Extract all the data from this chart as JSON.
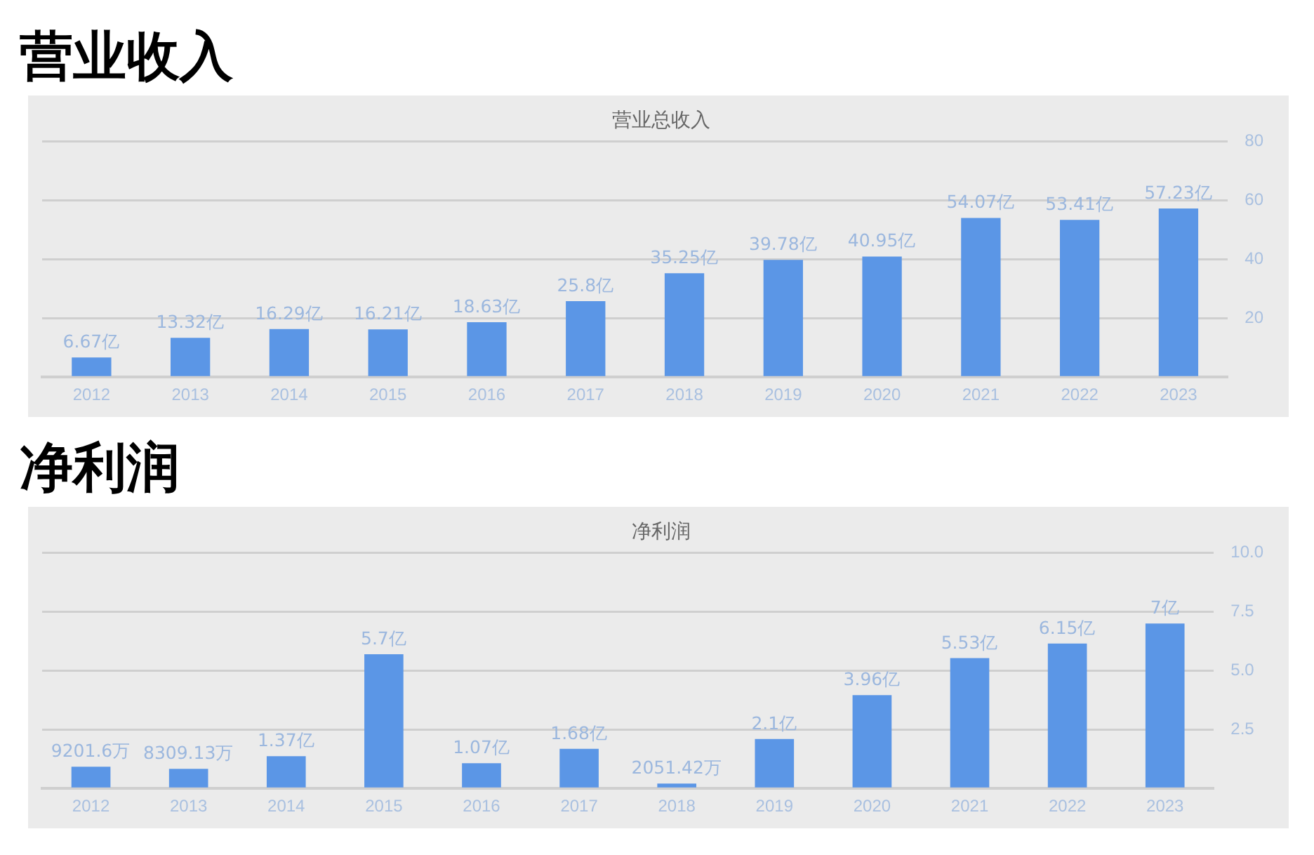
{
  "chart_data": [
    {
      "type": "bar",
      "title": "营业收入",
      "subtitle": "营业总收入",
      "categories": [
        "2012",
        "2013",
        "2014",
        "2015",
        "2016",
        "2017",
        "2018",
        "2019",
        "2020",
        "2021",
        "2022",
        "2023"
      ],
      "values": [
        6.67,
        13.32,
        16.29,
        16.21,
        18.63,
        25.8,
        35.25,
        39.78,
        40.95,
        54.07,
        53.41,
        57.23
      ],
      "color": "#5b96e6",
      "value_labels": [
        "6.67亿",
        "13.32亿",
        "16.29亿",
        "16.21亿",
        "18.63亿",
        "25.8亿",
        "35.25亿",
        "39.78亿",
        "40.95亿",
        "54.07亿",
        "53.41亿",
        "57.23亿"
      ],
      "ylim": [
        0,
        80
      ],
      "yticks": [
        {
          "value": 0,
          "label": null
        },
        20,
        40,
        60,
        80
      ],
      "grid": "y",
      "legend": false
    },
    {
      "type": "bar",
      "title": "净利润",
      "subtitle": "净利润",
      "categories": [
        "2012",
        "2013",
        "2014",
        "2015",
        "2016",
        "2017",
        "2018",
        "2019",
        "2020",
        "2021",
        "2022",
        "2023"
      ],
      "values": [
        0.92,
        0.83,
        1.37,
        5.7,
        1.07,
        1.68,
        0.21,
        2.1,
        3.96,
        5.53,
        6.15,
        7
      ],
      "color": "#5b96e6",
      "value_labels": [
        null,
        null,
        "1.37亿",
        "5.7亿",
        "1.07亿",
        "1.68亿",
        null,
        "2.1亿",
        "3.96亿",
        "5.53亿",
        "6.15亿",
        "7亿"
      ],
      "annotations": [
        {
          "text": "9201.6万",
          "x": "2012",
          "y": 0.92
        },
        {
          "text": "8309.13万",
          "x": "2013",
          "y": 0.83
        },
        {
          "text": "2051.42万",
          "x": "2018",
          "y": 0.21
        }
      ],
      "ylim": [
        0,
        10
      ],
      "yticks": [
        {
          "value": 0,
          "label": null
        },
        {
          "value": 2.5,
          "label": "2.5"
        },
        {
          "value": 5,
          "label": "5.0"
        },
        {
          "value": 7.5,
          "label": "7.5"
        },
        {
          "value": 10,
          "label": "10.0"
        }
      ],
      "grid": "y",
      "legend": false
    }
  ]
}
